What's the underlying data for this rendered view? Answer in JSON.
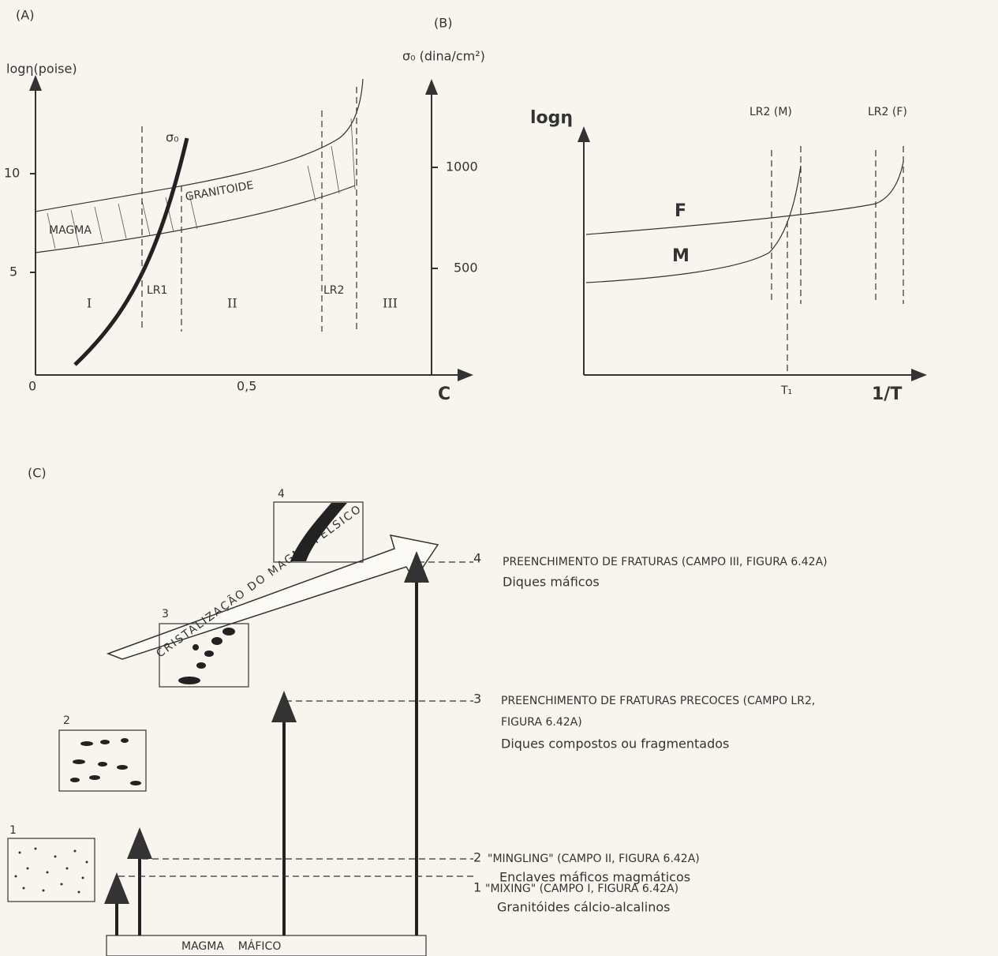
{
  "panel_a": {
    "label": "(A)",
    "y_label": "logη(poise)",
    "y2_label": "σ₀ (dina/cm²)",
    "x_label": "C",
    "x_ticks": [
      "0",
      "0,5"
    ],
    "y_ticks": [
      "5",
      "10"
    ],
    "y2_ticks": [
      "500",
      "1000"
    ],
    "curve_label": "σ₀",
    "band_labels": [
      "MAGMA",
      "GRANITOIDE"
    ],
    "fields": [
      "I",
      "II",
      "III"
    ],
    "limits": [
      "LR1",
      "LR2"
    ]
  },
  "panel_b": {
    "label": "(B)",
    "y_label": "logη",
    "x_label": "1/T",
    "x_tick": "T₁",
    "curves": [
      "F",
      "M"
    ],
    "limits": [
      "LR2 (M)",
      "LR2 (F)"
    ]
  },
  "panel_c": {
    "label": "(C)",
    "arrow_label": "CRISTALIZAÇÃO DO MAGMA FÉLSICO",
    "base_label": "MAGMA    MÁFICO",
    "insets": [
      "1",
      "2",
      "3",
      "4"
    ],
    "stages": [
      {
        "number": "1",
        "title": "\"MIXING\" (CAMPO I, FIGURA 6.42A)",
        "description": "Granitóides cálcio-alcalinos"
      },
      {
        "number": "2",
        "title": "\"MINGLING\" (CAMPO II, FIGURA 6.42A)",
        "description": "Enclaves máficos magmáticos"
      },
      {
        "number": "3",
        "title": "PREENCHIMENTO DE FRATURAS PRECOCES (CAMPO LR2,",
        "title_line2": "FIGURA 6.42A)",
        "description": "Diques compostos ou fragmentados"
      },
      {
        "number": "4",
        "title": "PREENCHIMENTO DE FRATURAS (CAMPO III, FIGURA 6.42A)",
        "description": "Diques máficos"
      }
    ]
  }
}
